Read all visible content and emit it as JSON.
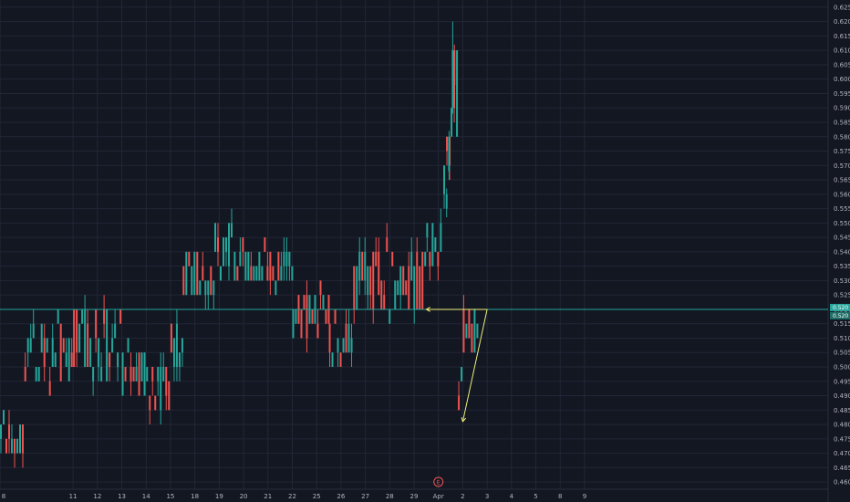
{
  "chart_data": {
    "type": "candlestick",
    "grid": true,
    "colors": {
      "background": "#131722",
      "grid": "#232736",
      "up": "#26a69a",
      "down": "#ef5350",
      "annotation": "#f0f07a",
      "horizontal_line": "#26a69a",
      "tick_text": "#b2b5be",
      "earnings_marker": "#ef5350"
    },
    "y_axis": {
      "range": [
        0.4575,
        0.6275
      ],
      "ticks": [
        "0.460",
        "0.465",
        "0.470",
        "0.475",
        "0.480",
        "0.485",
        "0.490",
        "0.495",
        "0.500",
        "0.505",
        "0.510",
        "0.515",
        "0.520",
        "0.525",
        "0.530",
        "0.535",
        "0.540",
        "0.545",
        "0.550",
        "0.555",
        "0.560",
        "0.565",
        "0.570",
        "0.575",
        "0.580",
        "0.585",
        "0.590",
        "0.595",
        "0.600",
        "0.605",
        "0.610",
        "0.615",
        "0.620",
        "0.625"
      ]
    },
    "x_axis": {
      "range": [
        8,
        42
      ],
      "ticks": [
        {
          "label": "8",
          "x": 8
        },
        {
          "label": "11",
          "x": 11
        },
        {
          "label": "12",
          "x": 12
        },
        {
          "label": "13",
          "x": 13
        },
        {
          "label": "14",
          "x": 14
        },
        {
          "label": "15",
          "x": 15
        },
        {
          "label": "18",
          "x": 16
        },
        {
          "label": "19",
          "x": 17
        },
        {
          "label": "20",
          "x": 18
        },
        {
          "label": "21",
          "x": 19
        },
        {
          "label": "22",
          "x": 20
        },
        {
          "label": "25",
          "x": 21
        },
        {
          "label": "26",
          "x": 22
        },
        {
          "label": "27",
          "x": 23
        },
        {
          "label": "28",
          "x": 24
        },
        {
          "label": "29",
          "x": 25
        },
        {
          "label": "Apr",
          "x": 26
        },
        {
          "label": "2",
          "x": 27
        },
        {
          "label": "3",
          "x": 28
        },
        {
          "label": "4",
          "x": 29
        },
        {
          "label": "5",
          "x": 30
        },
        {
          "label": "8",
          "x": 31
        },
        {
          "label": "9",
          "x": 32
        }
      ]
    },
    "price_labels": {
      "last": "0.520",
      "secondary": "0.520"
    },
    "horizontal_line": {
      "y": 0.52
    },
    "annotations": [
      {
        "type": "arrow-line",
        "x1": 28.0,
        "y1": 0.52,
        "x2": 25.5,
        "y2": 0.52
      },
      {
        "type": "arrow-line",
        "x1": 28.0,
        "y1": 0.52,
        "x2": 27.0,
        "y2": 0.481
      }
    ],
    "earnings_marker": {
      "label": "E",
      "x": 26.0
    },
    "segments": [
      {
        "x0": 8.0,
        "x1": 9.0,
        "seed": 1,
        "levels": [
          0.47,
          0.475,
          0.48
        ],
        "base": 0.475
      },
      {
        "x0": 9.0,
        "x1": 11.0,
        "seed": 2,
        "levels": [
          0.495,
          0.5,
          0.505,
          0.51,
          0.515
        ],
        "base": 0.505
      },
      {
        "x0": 11.0,
        "x1": 13.0,
        "seed": 3,
        "levels": [
          0.495,
          0.5,
          0.505,
          0.51,
          0.515,
          0.52
        ],
        "base": 0.505
      },
      {
        "x0": 13.0,
        "x1": 14.0,
        "seed": 4,
        "levels": [
          0.49,
          0.495,
          0.5,
          0.505,
          0.51
        ],
        "base": 0.5
      },
      {
        "x0": 14.0,
        "x1": 15.0,
        "seed": 5,
        "levels": [
          0.485,
          0.49,
          0.495,
          0.5
        ],
        "base": 0.495
      },
      {
        "x0": 15.0,
        "x1": 15.5,
        "seed": 6,
        "levels": [
          0.5,
          0.505,
          0.51,
          0.515,
          0.52
        ],
        "base": 0.51
      },
      {
        "x0": 15.5,
        "x1": 16.8,
        "seed": 7,
        "levels": [
          0.525,
          0.53,
          0.535,
          0.54
        ],
        "base": 0.53
      },
      {
        "x0": 16.8,
        "x1": 17.6,
        "seed": 8,
        "levels": [
          0.535,
          0.54,
          0.545,
          0.55
        ],
        "base": 0.54
      },
      {
        "x0": 17.6,
        "x1": 20.0,
        "seed": 9,
        "levels": [
          0.53,
          0.535,
          0.54
        ],
        "base": 0.535
      },
      {
        "x0": 20.0,
        "x1": 21.5,
        "seed": 10,
        "levels": [
          0.51,
          0.515,
          0.52,
          0.525
        ],
        "base": 0.515
      },
      {
        "x0": 21.5,
        "x1": 22.5,
        "seed": 11,
        "levels": [
          0.5,
          0.505,
          0.51,
          0.515
        ],
        "base": 0.508
      },
      {
        "x0": 22.5,
        "x1": 25.5,
        "seed": 12,
        "levels": [
          0.52,
          0.525,
          0.53,
          0.535,
          0.54
        ],
        "base": 0.53
      },
      {
        "x0": 25.5,
        "x1": 26.2,
        "seed": 13,
        "levels": [
          0.535,
          0.54,
          0.545,
          0.55
        ],
        "base": 0.545
      },
      {
        "x0": 26.2,
        "x1": 26.5,
        "seed": 14,
        "levels": [
          0.55,
          0.56,
          0.57,
          0.58
        ],
        "base": 0.56
      },
      {
        "x0": 26.5,
        "x1": 26.8,
        "seed": 15,
        "levels": [
          0.58,
          0.59,
          0.6,
          0.61
        ],
        "base": 0.6
      },
      {
        "x0": 26.8,
        "x1": 27.0,
        "seed": 16,
        "levels": [
          0.485,
          0.49,
          0.495,
          0.5
        ],
        "base": 0.495
      },
      {
        "x0": 27.0,
        "x1": 27.6,
        "seed": 17,
        "levels": [
          0.505,
          0.51,
          0.515,
          0.52
        ],
        "base": 0.512
      }
    ]
  }
}
